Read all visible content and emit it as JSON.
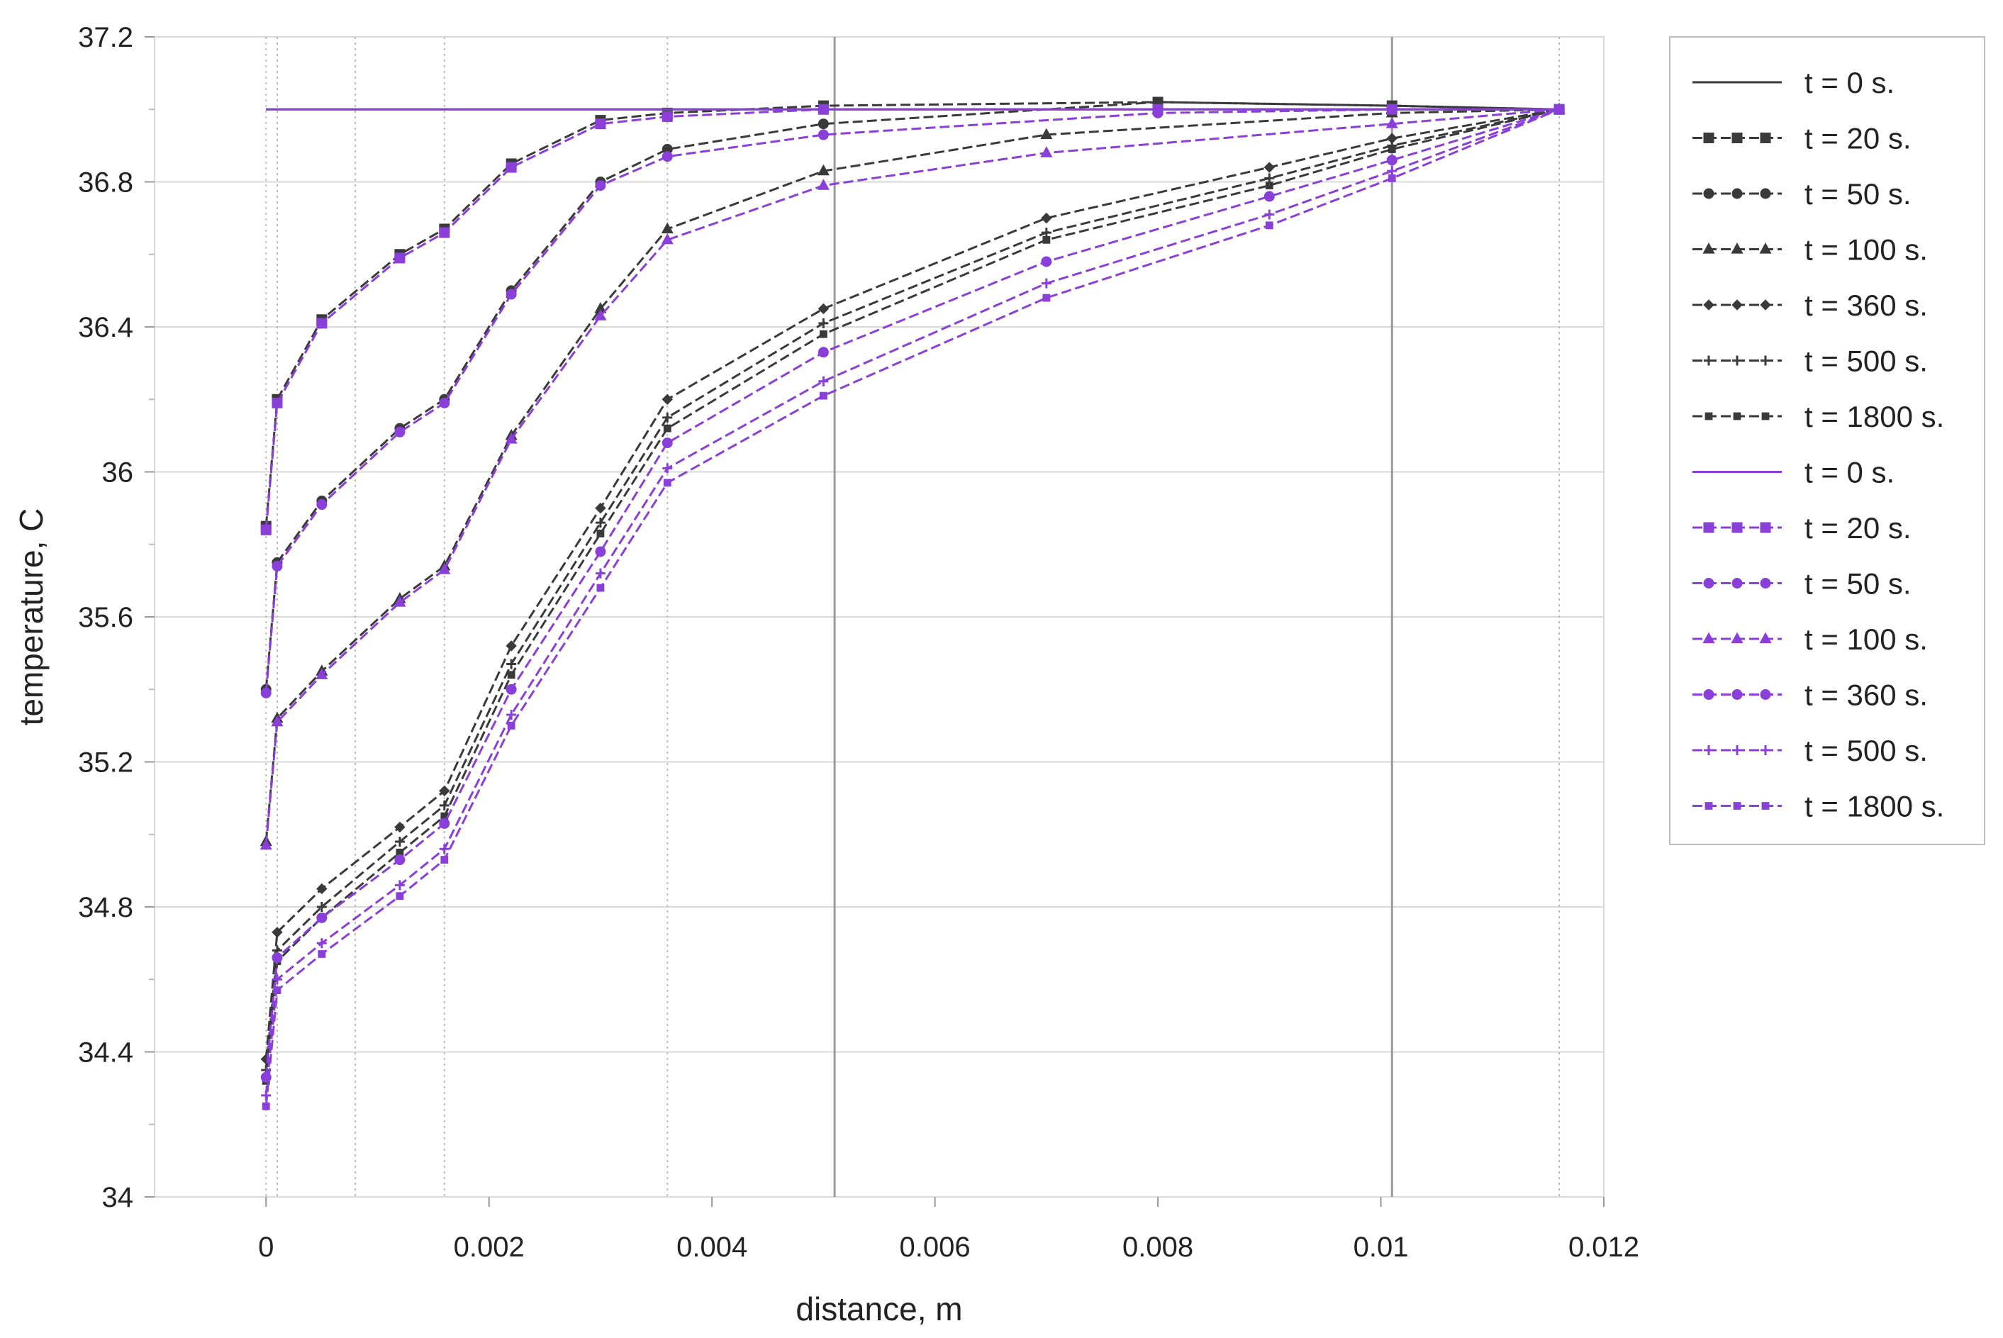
{
  "chart_data": {
    "type": "line",
    "xlabel": "distance, m",
    "ylabel": "temperature, C",
    "xlim": [
      -0.001,
      0.012
    ],
    "ylim": [
      34,
      37.2
    ],
    "xticks": [
      0,
      0.002,
      0.004,
      0.006,
      0.008,
      0.01,
      0.012
    ],
    "xtick_labels": [
      "0",
      "0.002",
      "0.004",
      "0.006",
      "0.008",
      "0.01",
      "0.012"
    ],
    "yticks": [
      34,
      34.4,
      34.8,
      35.2,
      35.6,
      36,
      36.4,
      36.8,
      37.2
    ],
    "ytick_labels": [
      "34",
      "34.4",
      "34.8",
      "35.2",
      "35.6",
      "36",
      "36.4",
      "36.8",
      "37.2"
    ],
    "boundary_lines_x": [
      0,
      0.0001,
      0.0008,
      0.0016,
      0.0036,
      0.0116
    ],
    "interface_lines_x": [
      0.0051,
      0.0101
    ],
    "grid": true,
    "legend_position": "right",
    "colors": {
      "black": "#3a3a3a",
      "purple": "#8a3fd9",
      "grid": "#d9d9d9",
      "interface": "#9a9a9a",
      "boundary": "#bdbdbd"
    },
    "series": [
      {
        "name": "t = 0 s.",
        "color": "black",
        "marker": "none",
        "x": [
          0,
          0.0116
        ],
        "y": [
          37.0,
          37.0
        ]
      },
      {
        "name": "t = 20 s.",
        "color": "black",
        "marker": "square",
        "x": [
          0,
          0.0001,
          0.0005,
          0.0012,
          0.0016,
          0.0022,
          0.003,
          0.0036,
          0.005,
          0.008,
          0.0101,
          0.0116
        ],
        "y": [
          35.85,
          36.2,
          36.42,
          36.6,
          36.67,
          36.85,
          36.97,
          36.99,
          37.01,
          37.02,
          37.01,
          37.0
        ]
      },
      {
        "name": "t = 50 s.",
        "color": "black",
        "marker": "circle",
        "x": [
          0,
          0.0001,
          0.0005,
          0.0012,
          0.0016,
          0.0022,
          0.003,
          0.0036,
          0.005,
          0.008,
          0.0101,
          0.0116
        ],
        "y": [
          35.4,
          35.75,
          35.92,
          36.12,
          36.2,
          36.5,
          36.8,
          36.89,
          36.96,
          37.02,
          37.01,
          37.0
        ]
      },
      {
        "name": "t = 100 s.",
        "color": "black",
        "marker": "triangle",
        "x": [
          0,
          0.0001,
          0.0005,
          0.0012,
          0.0016,
          0.0022,
          0.003,
          0.0036,
          0.005,
          0.007,
          0.0101,
          0.0116
        ],
        "y": [
          34.98,
          35.32,
          35.45,
          35.65,
          35.74,
          36.1,
          36.45,
          36.67,
          36.83,
          36.93,
          36.99,
          37.0
        ]
      },
      {
        "name": "t = 360 s.",
        "color": "black",
        "marker": "diamond",
        "x": [
          0,
          0.0001,
          0.0005,
          0.0012,
          0.0016,
          0.0022,
          0.003,
          0.0036,
          0.005,
          0.007,
          0.009,
          0.0101,
          0.0116
        ],
        "y": [
          34.38,
          34.73,
          34.85,
          35.02,
          35.12,
          35.52,
          35.9,
          36.2,
          36.45,
          36.7,
          36.84,
          36.92,
          37.0
        ]
      },
      {
        "name": "t = 500 s.",
        "color": "black",
        "marker": "plus",
        "x": [
          0,
          0.0001,
          0.0005,
          0.0012,
          0.0016,
          0.0022,
          0.003,
          0.0036,
          0.005,
          0.007,
          0.009,
          0.0101,
          0.0116
        ],
        "y": [
          34.35,
          34.68,
          34.8,
          34.98,
          35.08,
          35.47,
          35.86,
          36.15,
          36.41,
          36.66,
          36.81,
          36.9,
          37.0
        ]
      },
      {
        "name": "t = 1800 s.",
        "color": "black",
        "marker": "bar",
        "x": [
          0,
          0.0001,
          0.0005,
          0.0012,
          0.0016,
          0.0022,
          0.003,
          0.0036,
          0.005,
          0.007,
          0.009,
          0.0101,
          0.0116
        ],
        "y": [
          34.32,
          34.65,
          34.77,
          34.95,
          35.05,
          35.44,
          35.83,
          36.12,
          36.38,
          36.64,
          36.79,
          36.89,
          37.0
        ]
      },
      {
        "name": "t = 0 s.",
        "color": "purple",
        "marker": "none",
        "x": [
          0,
          0.0116
        ],
        "y": [
          37.0,
          37.0
        ]
      },
      {
        "name": "t = 20 s.",
        "color": "purple",
        "marker": "square",
        "x": [
          0,
          0.0001,
          0.0005,
          0.0012,
          0.0016,
          0.0022,
          0.003,
          0.0036,
          0.005,
          0.008,
          0.0101,
          0.0116
        ],
        "y": [
          35.84,
          36.19,
          36.41,
          36.59,
          36.66,
          36.84,
          36.96,
          36.98,
          37.0,
          37.0,
          37.0,
          37.0
        ]
      },
      {
        "name": "t = 50 s.",
        "color": "purple",
        "marker": "circle",
        "x": [
          0,
          0.0001,
          0.0005,
          0.0012,
          0.0016,
          0.0022,
          0.003,
          0.0036,
          0.005,
          0.008,
          0.0101,
          0.0116
        ],
        "y": [
          35.39,
          35.74,
          35.91,
          36.11,
          36.19,
          36.49,
          36.79,
          36.87,
          36.93,
          36.99,
          37.0,
          37.0
        ]
      },
      {
        "name": "t = 100 s.",
        "color": "purple",
        "marker": "triangle",
        "x": [
          0,
          0.0001,
          0.0005,
          0.0012,
          0.0016,
          0.0022,
          0.003,
          0.0036,
          0.005,
          0.007,
          0.0101,
          0.0116
        ],
        "y": [
          34.97,
          35.31,
          35.44,
          35.64,
          35.73,
          36.09,
          36.43,
          36.64,
          36.79,
          36.88,
          36.96,
          37.0
        ]
      },
      {
        "name": "t = 360 s.",
        "color": "purple",
        "marker": "circle",
        "x": [
          0,
          0.0001,
          0.0005,
          0.0012,
          0.0016,
          0.0022,
          0.003,
          0.0036,
          0.005,
          0.007,
          0.009,
          0.0101,
          0.0116
        ],
        "y": [
          34.33,
          34.66,
          34.77,
          34.93,
          35.03,
          35.4,
          35.78,
          36.08,
          36.33,
          36.58,
          36.76,
          36.86,
          37.0
        ]
      },
      {
        "name": "t = 500 s.",
        "color": "purple",
        "marker": "plus",
        "x": [
          0,
          0.0001,
          0.0005,
          0.0012,
          0.0016,
          0.0022,
          0.003,
          0.0036,
          0.005,
          0.007,
          0.009,
          0.0101,
          0.0116
        ],
        "y": [
          34.28,
          34.6,
          34.7,
          34.86,
          34.96,
          35.33,
          35.72,
          36.01,
          36.25,
          36.52,
          36.71,
          36.83,
          37.0
        ]
      },
      {
        "name": "t = 1800 s.",
        "color": "purple",
        "marker": "bar",
        "x": [
          0,
          0.0001,
          0.0005,
          0.0012,
          0.0016,
          0.0022,
          0.003,
          0.0036,
          0.005,
          0.007,
          0.009,
          0.0101,
          0.0116
        ],
        "y": [
          34.25,
          34.57,
          34.67,
          34.83,
          34.93,
          35.3,
          35.68,
          35.97,
          36.21,
          36.48,
          36.68,
          36.81,
          37.0
        ]
      }
    ]
  }
}
